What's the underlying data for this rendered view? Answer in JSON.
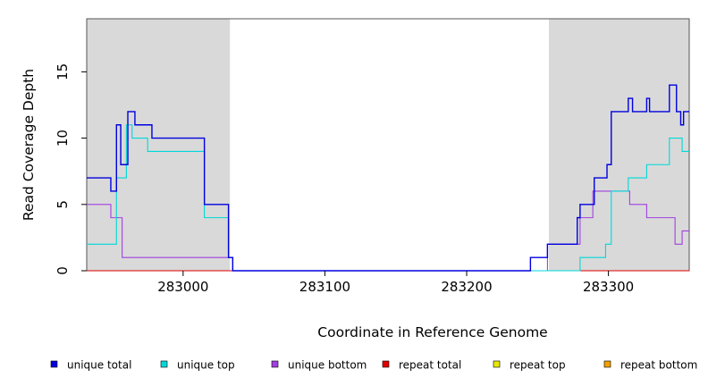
{
  "chart_data": {
    "type": "line",
    "style": "step",
    "title": "",
    "xlabel": "Coordinate in Reference Genome",
    "ylabel": "Read Coverage Depth",
    "xlim": [
      282932,
      283357
    ],
    "ylim": [
      0,
      19
    ],
    "x_ticks": [
      283000,
      283100,
      283200,
      283300
    ],
    "y_ticks": [
      0,
      5,
      10,
      15
    ],
    "grid": false,
    "legend_position": "bottom",
    "shaded_regions": [
      {
        "x_start": 282932,
        "x_end": 283033,
        "color": "#d9d9d9"
      },
      {
        "x_start": 283258,
        "x_end": 283357,
        "color": "#d9d9d9"
      }
    ],
    "series": [
      {
        "name": "unique total",
        "color": "#0000e0",
        "points": [
          [
            282932,
            7
          ],
          [
            282949,
            6
          ],
          [
            282953,
            11
          ],
          [
            282956,
            8
          ],
          [
            282961,
            12
          ],
          [
            282966,
            11
          ],
          [
            282978,
            10
          ],
          [
            283015,
            5
          ],
          [
            283032,
            1
          ],
          [
            283035,
            0
          ],
          [
            283245,
            1
          ],
          [
            283257,
            2
          ],
          [
            283278,
            4
          ],
          [
            283280,
            5
          ],
          [
            283290,
            7
          ],
          [
            283299,
            8
          ],
          [
            283302,
            12
          ],
          [
            283314,
            13
          ],
          [
            283317,
            12
          ],
          [
            283327,
            13
          ],
          [
            283329,
            12
          ],
          [
            283343,
            14
          ],
          [
            283348,
            12
          ],
          [
            283351,
            11
          ],
          [
            283353,
            12
          ],
          [
            283357,
            12
          ]
        ]
      },
      {
        "name": "unique top",
        "color": "#00d8d8",
        "points": [
          [
            282932,
            2
          ],
          [
            282953,
            7
          ],
          [
            282960,
            11
          ],
          [
            282964,
            10
          ],
          [
            282975,
            9
          ],
          [
            283015,
            4
          ],
          [
            283032,
            1
          ],
          [
            283035,
            0
          ],
          [
            283280,
            1
          ],
          [
            283298,
            2
          ],
          [
            283302,
            6
          ],
          [
            283314,
            7
          ],
          [
            283327,
            8
          ],
          [
            283343,
            10
          ],
          [
            283352,
            9
          ],
          [
            283357,
            9
          ]
        ]
      },
      {
        "name": "unique bottom",
        "color": "#a040e0",
        "points": [
          [
            282932,
            5
          ],
          [
            282949,
            4
          ],
          [
            282957,
            1
          ],
          [
            283032,
            1
          ],
          [
            283035,
            0
          ],
          [
            283257,
            2
          ],
          [
            283280,
            4
          ],
          [
            283289,
            6
          ],
          [
            283315,
            5
          ],
          [
            283327,
            4
          ],
          [
            283347,
            2
          ],
          [
            283352,
            3
          ],
          [
            283357,
            3
          ]
        ]
      },
      {
        "name": "repeat total",
        "color": "#e00000",
        "points": [
          [
            282932,
            0
          ],
          [
            283357,
            0
          ]
        ]
      },
      {
        "name": "repeat top",
        "color": "#e8e800",
        "points": [
          [
            282932,
            0
          ],
          [
            283357,
            0
          ]
        ]
      },
      {
        "name": "repeat bottom",
        "color": "#f0a000",
        "points": [
          [
            282932,
            0
          ],
          [
            283357,
            0
          ]
        ]
      }
    ]
  }
}
